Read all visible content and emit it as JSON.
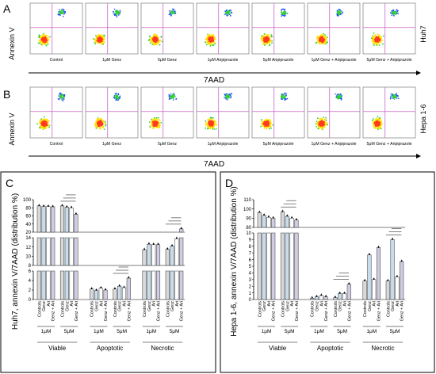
{
  "panels": {
    "A": {
      "letter": "A",
      "row_label": "Huh7",
      "y_axis": "Annexin V",
      "x_axis": "7AAD"
    },
    "B": {
      "letter": "B",
      "row_label": "Hepa 1-6",
      "y_axis": "Annexin V",
      "x_axis": "7AAD"
    },
    "C": {
      "letter": "C"
    },
    "D": {
      "letter": "D"
    }
  },
  "flow_labels": [
    "Control",
    "1μM Genz",
    "5μM Genz",
    "1μM Aripiprazole",
    "5μM Aripiprazole",
    "1μM Genz + Aripiprazole",
    "5μM Genz + Aripiprazole"
  ],
  "colors": {
    "control": "#d9d9d9",
    "genz": "#c7dced",
    "ari": "#ffffff",
    "combo": "#d0cde3",
    "quad": "#cc66cc",
    "dots_hi": "#1f4fff"
  },
  "chart_data": [
    {
      "type": "bar",
      "panel": "C",
      "ylabel": "Huh7, annexin V/7AAD (distribution %)",
      "categories": [
        "Controls",
        "Genz",
        "Ari",
        "Genz + Ari",
        "Controls",
        "Genz",
        "Ari",
        "Genz + Ari"
      ],
      "doses": [
        "1μM",
        "5μM"
      ],
      "groups": [
        "Viable",
        "Apoptotic",
        "Necrotic"
      ],
      "axis_breaks": [
        {
          "ylim": [
            0,
            6
          ],
          "ticks": [
            0,
            2,
            4,
            6
          ]
        },
        {
          "ylim": [
            8,
            14
          ],
          "ticks": [
            8,
            10,
            12,
            14
          ]
        },
        {
          "ylim": [
            20,
            100
          ],
          "ticks": [
            20,
            40,
            60,
            80,
            100
          ]
        }
      ],
      "series": [
        {
          "group": "Viable",
          "values": [
            84.5,
            83.5,
            83.0,
            82.5,
            84.5,
            81.5,
            80.0,
            64.0
          ]
        },
        {
          "group": "Apoptotic",
          "values": [
            2.2,
            1.9,
            2.4,
            2.0,
            2.2,
            2.8,
            2.5,
            4.5
          ]
        },
        {
          "group": "Necrotic",
          "values": [
            11.4,
            12.6,
            12.5,
            12.5,
            11.5,
            12.2,
            13.8,
            28.0
          ]
        }
      ]
    },
    {
      "type": "bar",
      "panel": "D",
      "ylabel": "Hepa 1-6, annexin V/7AAD (distribution %)",
      "categories": [
        "Controls",
        "Genz",
        "Ari",
        "Genz + Ari",
        "Controls",
        "Genz",
        "Ari",
        "Genz + Ari"
      ],
      "doses": [
        "1μM",
        "5μM"
      ],
      "groups": [
        "Viable",
        "Apoptotic",
        "Necrotic"
      ],
      "axis_breaks": [
        {
          "ylim": [
            0,
            10
          ],
          "ticks": [
            0,
            1,
            2,
            3,
            4,
            5,
            6,
            7,
            8,
            9,
            10
          ]
        },
        {
          "ylim": [
            80,
            110
          ],
          "ticks": [
            80,
            90,
            100,
            110
          ]
        }
      ],
      "series": [
        {
          "group": "Viable",
          "values": [
            96,
            93,
            91,
            90,
            97,
            92,
            90,
            88
          ]
        },
        {
          "group": "Apoptotic",
          "values": [
            0.2,
            0.4,
            0.6,
            0.4,
            0.3,
            0.9,
            0.9,
            2.3
          ]
        },
        {
          "group": "Necrotic",
          "values": [
            2.8,
            6.7,
            3.0,
            7.8,
            2.8,
            9.0,
            3.4,
            5.7
          ]
        }
      ]
    }
  ]
}
